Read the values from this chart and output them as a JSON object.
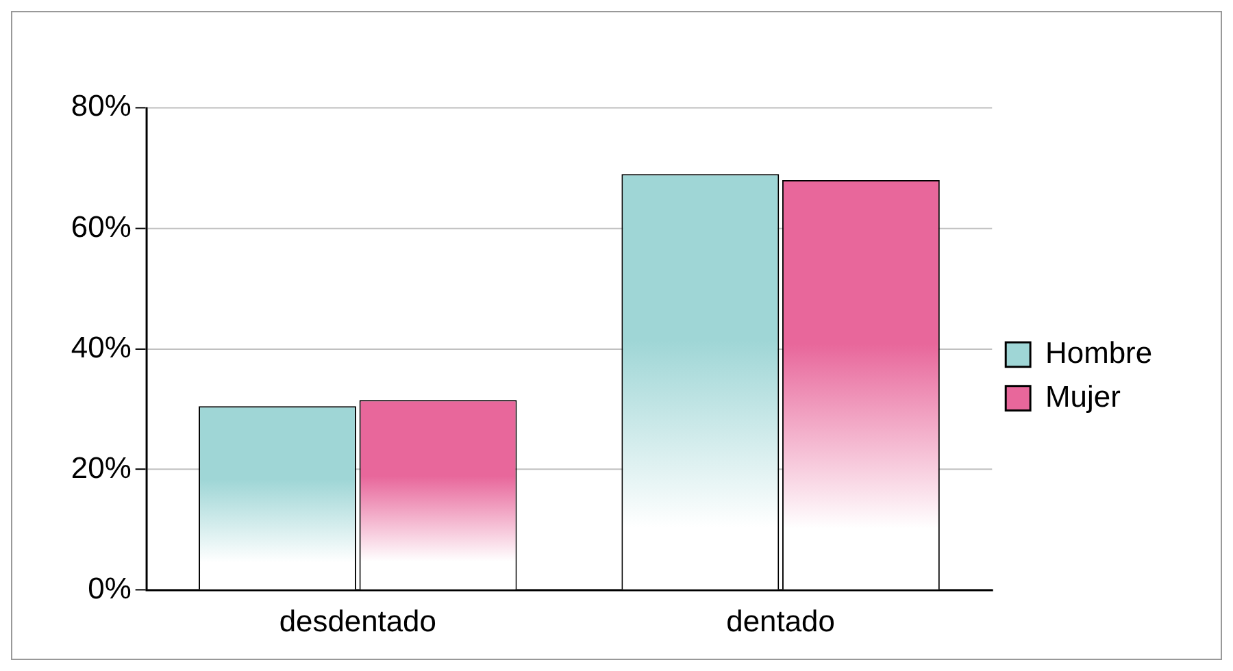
{
  "chart_data": {
    "type": "bar",
    "categories": [
      "desdentado",
      "dentado"
    ],
    "series": [
      {
        "name": "Hombre",
        "color": "#9fd6d6",
        "values": [
          30.5,
          69
        ]
      },
      {
        "name": "Mujer",
        "color": "#e8679b",
        "values": [
          31.5,
          68
        ]
      }
    ],
    "ylim": [
      0,
      80
    ],
    "yticks": [
      {
        "value": 0,
        "label": "0%"
      },
      {
        "value": 20,
        "label": "20%"
      },
      {
        "value": 40,
        "label": "40%"
      },
      {
        "value": 60,
        "label": "60%"
      },
      {
        "value": 80,
        "label": "80%"
      }
    ],
    "grid": "y",
    "legend": "right"
  }
}
